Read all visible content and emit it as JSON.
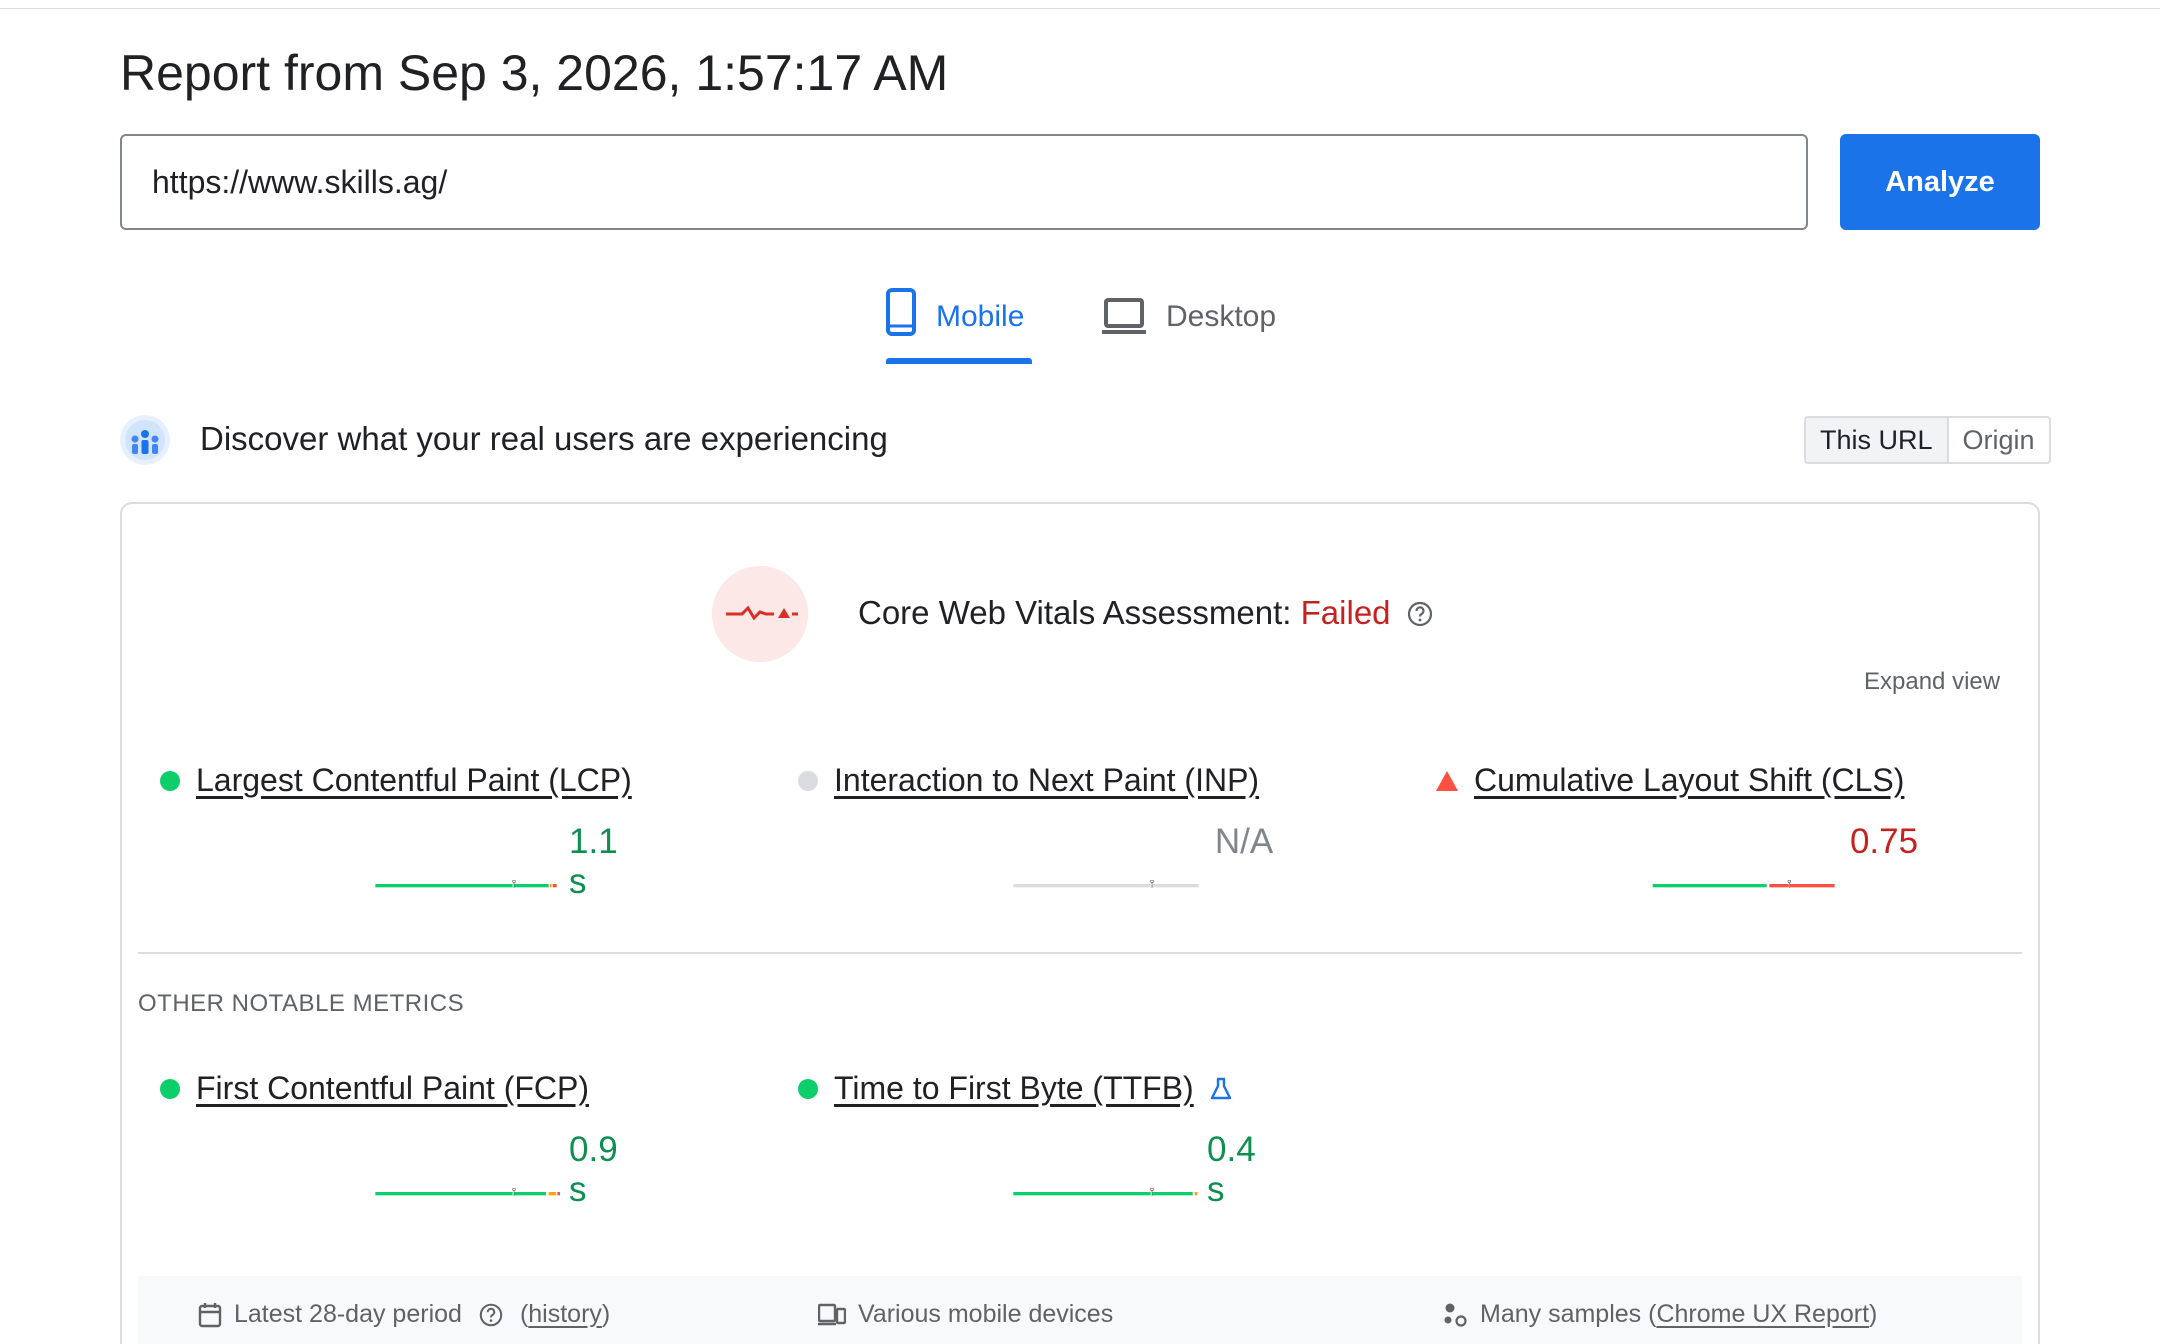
{
  "report": {
    "title": "Report from Sep 3, 2026, 1:57:17 AM"
  },
  "search": {
    "url_value": "https://www.skills.ag/",
    "analyze_label": "Analyze"
  },
  "tabs": [
    {
      "label": "Mobile",
      "active": true
    },
    {
      "label": "Desktop",
      "active": false
    }
  ],
  "crux": {
    "heading": "Discover what your real users are experiencing",
    "toggle": {
      "this_url": "This URL",
      "origin": "Origin",
      "selected": "This URL"
    }
  },
  "assessment": {
    "label": "Core Web Vitals Assessment:",
    "status": "Failed",
    "expand_label": "Expand view"
  },
  "core_metrics": [
    {
      "name": "Largest Contentful Paint (LCP)",
      "value": "1.1 s",
      "status": "good"
    },
    {
      "name": "Interaction to Next Paint (INP)",
      "value": "N/A",
      "status": "none"
    },
    {
      "name": "Cumulative Layout Shift (CLS)",
      "value": "0.75",
      "status": "poor"
    }
  ],
  "other_label": "OTHER NOTABLE METRICS",
  "other_metrics": [
    {
      "name": "First Contentful Paint (FCP)",
      "value": "0.9 s",
      "status": "good"
    },
    {
      "name": "Time to First Byte (TTFB)",
      "value": "0.4 s",
      "status": "good",
      "experimental": true
    }
  ],
  "footer": {
    "period": "Latest 28-day period",
    "history_link": "history",
    "devices": "Various mobile devices",
    "samples_prefix": "Many samples (",
    "samples_link": "Chrome UX Report",
    "samples_suffix": ")"
  },
  "colors": {
    "good": "#0cce6b",
    "needs_improvement": "#ffa400",
    "poor": "#ff4e42",
    "none": "#dadce0",
    "accent": "#1a73e8",
    "failed_text": "#c5221f"
  },
  "icons": [
    "mobile-phone-icon",
    "laptop-icon",
    "crux-users-icon",
    "heartbeat-failed-icon",
    "help-circle-icon",
    "flask-icon",
    "calendar-icon",
    "devices-icon",
    "samples-icon"
  ]
}
